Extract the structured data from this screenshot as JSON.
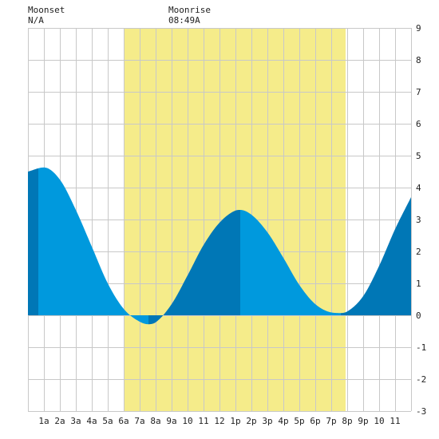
{
  "header": {
    "moonset_label": "Moonset",
    "moonset_value": "N/A",
    "moonrise_label": "Moonrise",
    "moonrise_value": "08:49A"
  },
  "colors": {
    "background": "#ffffff",
    "daylight": "#f5ec8a",
    "grid": "#c8c8c8",
    "tide_light": "#0099dd",
    "tide_dark": "#0077b6",
    "axis_text": "#222222"
  },
  "chart_data": {
    "type": "area",
    "title": "",
    "xlabel": "",
    "ylabel": "",
    "xlim": [
      0,
      24
    ],
    "ylim": [
      -3,
      9
    ],
    "x_tick_labels": [
      "1a",
      "2a",
      "3a",
      "4a",
      "5a",
      "6a",
      "7a",
      "8a",
      "9a",
      "10",
      "11",
      "12",
      "1p",
      "2p",
      "3p",
      "4p",
      "5p",
      "6p",
      "7p",
      "8p",
      "9p",
      "10",
      "11"
    ],
    "y_tick_labels": [
      "-3",
      "-2",
      "-1",
      "0",
      "1",
      "2",
      "3",
      "4",
      "5",
      "6",
      "7",
      "8",
      "9"
    ],
    "daylight": {
      "start": 6.0,
      "end": 19.9
    },
    "extremes": [
      {
        "time": 0.65,
        "height": 4.65,
        "kind": "high"
      },
      {
        "time": 7.55,
        "height": -0.28,
        "kind": "low"
      },
      {
        "time": 13.3,
        "height": 3.3,
        "kind": "high"
      },
      {
        "time": 19.6,
        "height": 0.07,
        "kind": "low"
      }
    ],
    "series": [
      {
        "x": [
          0,
          1,
          2,
          3,
          4,
          5,
          6,
          7,
          7.55,
          8,
          9,
          10,
          11,
          12,
          13,
          13.3,
          14,
          15,
          16,
          17,
          18,
          19,
          19.6,
          20,
          21,
          22,
          23,
          24
        ],
        "values": [
          4.5,
          4.63,
          4.25,
          3.3,
          2.15,
          1.0,
          0.2,
          -0.2,
          -0.28,
          -0.22,
          0.35,
          1.25,
          2.2,
          2.9,
          3.28,
          3.3,
          3.15,
          2.6,
          1.8,
          0.95,
          0.35,
          0.09,
          0.07,
          0.12,
          0.6,
          1.55,
          2.7,
          3.7
        ]
      }
    ]
  }
}
